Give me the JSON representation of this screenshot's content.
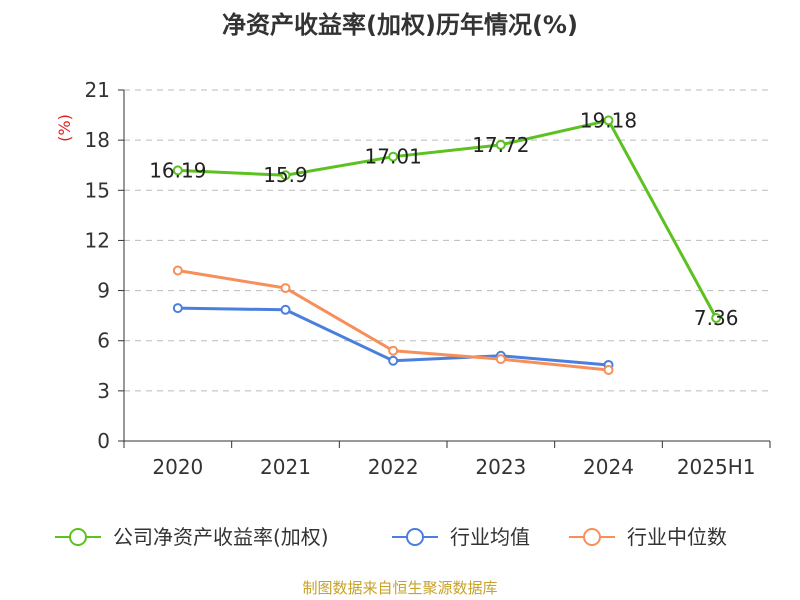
{
  "chart_data": {
    "type": "line",
    "title": "净资产收益率(加权)历年情况(%)",
    "ylabel": "(%)",
    "xlabel": "",
    "categories": [
      "2020",
      "2021",
      "2022",
      "2023",
      "2024",
      "2025H1"
    ],
    "ylim": [
      0,
      21
    ],
    "yticks": [
      0,
      3,
      6,
      9,
      12,
      15,
      18,
      21
    ],
    "grid": true,
    "legend_position": "bottom",
    "series": [
      {
        "name": "公司净资产收益率(加权)",
        "color": "#5cc121",
        "values": [
          16.19,
          15.9,
          17.01,
          17.72,
          19.18,
          7.36
        ],
        "labels": [
          "16.19",
          "15.9",
          "17.01",
          "17.72",
          "19.18",
          "7.36"
        ]
      },
      {
        "name": "行业均值",
        "color": "#4a7fdc",
        "values": [
          7.95,
          7.85,
          4.8,
          5.1,
          4.55,
          null
        ]
      },
      {
        "name": "行业中位数",
        "color": "#f78f5b",
        "values": [
          10.2,
          9.15,
          5.4,
          4.9,
          4.25,
          null
        ]
      }
    ]
  },
  "source_text": "制图数据来自恒生聚源数据库"
}
